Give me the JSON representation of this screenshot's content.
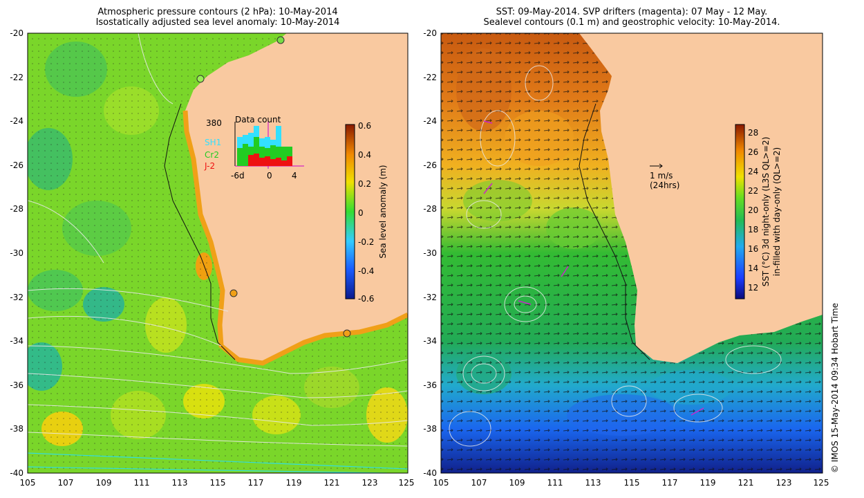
{
  "left_panel": {
    "title_line1": "Atmospheric pressure contours (2 hPa): 10-May-2014",
    "title_line2": "Isostatically adjusted sea level anomaly: 10-May-2014",
    "colorbar": {
      "label": "Sea level anomaly (m)",
      "ticks": [
        "0.6",
        "0.4",
        "0.2",
        "0",
        "-0.2",
        "-0.4",
        "-0.6"
      ]
    },
    "inset": {
      "title": "Data count",
      "max_label": "380",
      "x_ticks": [
        "-6d",
        "0",
        "4"
      ],
      "legend": [
        {
          "label": "SH1",
          "color": "#33e0ff"
        },
        {
          "label": "Cr2",
          "color": "#22cc22"
        },
        {
          "label": "J-2",
          "color": "#ee1111"
        }
      ]
    }
  },
  "right_panel": {
    "title_line1": "SST: 09-May-2014. SVP drifters (magenta): 07 May - 12 May.",
    "title_line2": "Sealevel contours (0.1 m) and geostrophic velocity: 10-May-2014.",
    "scale_arrow_label1": "1 m/s",
    "scale_arrow_label2": "(24hrs)",
    "colorbar": {
      "label_line1": "SST (°C)  3d night-only (L3S QL>=2)",
      "label_line2": "in-filled with day-only (QL>=2)",
      "ticks": [
        "28",
        "26",
        "24",
        "22",
        "20",
        "18",
        "16",
        "14",
        "12"
      ]
    }
  },
  "axes": {
    "x_ticks": [
      "105",
      "107",
      "109",
      "111",
      "113",
      "115",
      "117",
      "119",
      "121",
      "123",
      "125"
    ],
    "y_ticks": [
      "-20",
      "-22",
      "-24",
      "-26",
      "-28",
      "-30",
      "-32",
      "-34",
      "-36",
      "-38",
      "-40"
    ]
  },
  "credit": "© IMOS 15-May-2014 09:34 Hobart Time"
}
